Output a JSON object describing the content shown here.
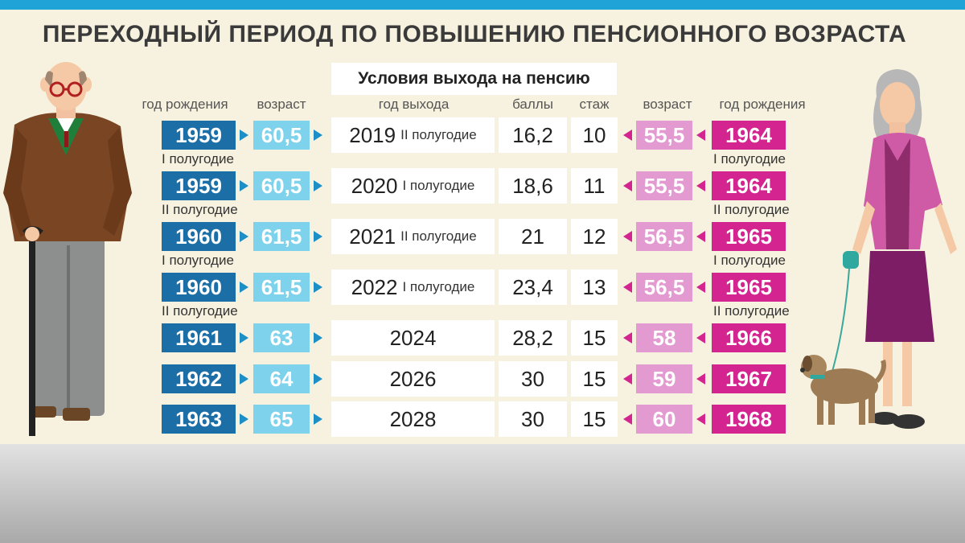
{
  "title": "ПЕРЕХОДНЫЙ ПЕРИОД ПО ПОВЫШЕНИЮ ПЕНСИОННОГО ВОЗРАСТА",
  "subtitle": "Условия выхода на пенсию",
  "headers": {
    "men_birth": "год рождения",
    "men_age": "возраст",
    "exit_year": "год выхода",
    "points": "баллы",
    "experience": "стаж",
    "women_age": "возраст",
    "women_birth": "год рождения"
  },
  "rows": [
    {
      "men_birth": "1959",
      "men_sub": "I полугодие",
      "men_age": "60,5",
      "exit_year": "2019",
      "exit_half": "II полугодие",
      "points": "16,2",
      "experience": "10",
      "women_age": "55,5",
      "women_birth": "1964",
      "women_sub": "I полугодие"
    },
    {
      "men_birth": "1959",
      "men_sub": "II полугодие",
      "men_age": "60,5",
      "exit_year": "2020",
      "exit_half": "I полугодие",
      "points": "18,6",
      "experience": "11",
      "women_age": "55,5",
      "women_birth": "1964",
      "women_sub": "II полугодие"
    },
    {
      "men_birth": "1960",
      "men_sub": "I полугодие",
      "men_age": "61,5",
      "exit_year": "2021",
      "exit_half": "II полугодие",
      "points": "21",
      "experience": "12",
      "women_age": "56,5",
      "women_birth": "1965",
      "women_sub": "I полугодие"
    },
    {
      "men_birth": "1960",
      "men_sub": "II полугодие",
      "men_age": "61,5",
      "exit_year": "2022",
      "exit_half": "I полугодие",
      "points": "23,4",
      "experience": "13",
      "women_age": "56,5",
      "women_birth": "1965",
      "women_sub": "II полугодие"
    },
    {
      "men_birth": "1961",
      "men_sub": "",
      "men_age": "63",
      "exit_year": "2024",
      "exit_half": "",
      "points": "28,2",
      "experience": "15",
      "women_age": "58",
      "women_birth": "1966",
      "women_sub": ""
    },
    {
      "men_birth": "1962",
      "men_sub": "",
      "men_age": "64",
      "exit_year": "2026",
      "exit_half": "",
      "points": "30",
      "experience": "15",
      "women_age": "59",
      "women_birth": "1967",
      "women_sub": ""
    },
    {
      "men_birth": "1963",
      "men_sub": "",
      "men_age": "65",
      "exit_year": "2028",
      "exit_half": "",
      "points": "30",
      "experience": "15",
      "women_age": "60",
      "women_birth": "1968",
      "women_sub": ""
    }
  ],
  "colors": {
    "top_bar": "#20a4d8",
    "men_birth": "#1c6fa6",
    "men_age": "#7fd2eb",
    "women_age": "#e39ad0",
    "women_birth": "#d4248f",
    "background": "#f7f2df"
  },
  "icons": [
    "old-man-figure",
    "old-woman-figure",
    "dog-figure"
  ]
}
